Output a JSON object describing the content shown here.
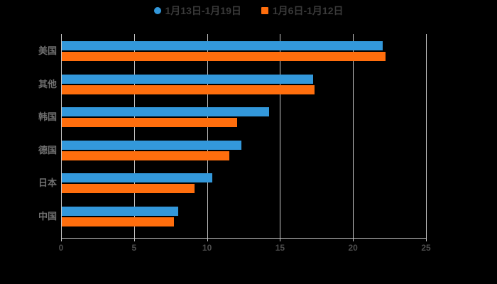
{
  "legend": {
    "items": [
      {
        "label": "1月13日-1月19日",
        "color": "#3398db",
        "marker": "circle"
      },
      {
        "label": "1月6日-1月12日",
        "color": "#ff6e0d",
        "marker": "square"
      }
    ]
  },
  "chart_data": {
    "type": "bar",
    "orientation": "horizontal",
    "title": "",
    "xlabel": "",
    "ylabel": "",
    "categories": [
      "美国",
      "其他",
      "韩国",
      "德国",
      "日本",
      "中国"
    ],
    "series": [
      {
        "name": "1月13日-1月19日",
        "color": "#3398db",
        "values": [
          22.0,
          17.2,
          14.2,
          12.3,
          10.3,
          8.0
        ]
      },
      {
        "name": "1月6日-1月12日",
        "color": "#ff6e0d",
        "values": [
          22.2,
          17.3,
          12.0,
          11.5,
          9.1,
          7.7
        ]
      }
    ],
    "xlim": [
      0,
      25
    ],
    "x_ticks": [
      "0",
      "5",
      "10",
      "15",
      "20",
      "25"
    ],
    "grid": true,
    "legend_position": "top",
    "colors": {
      "background": "#000000",
      "gridline": "#c9c9c9",
      "axis_line": "#c9c9c9",
      "tick_label": "#4d4d4d",
      "category_label": "#6f6f6f",
      "legend_text": "#3a3a3a"
    }
  }
}
